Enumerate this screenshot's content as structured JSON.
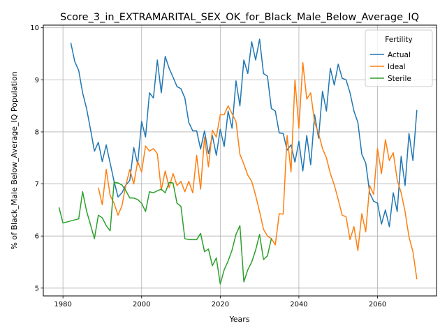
{
  "chart_data": {
    "type": "line",
    "title": "Score_3_in_EXTRAMARITAL_SEX_OK_for_Black_Male_Below_Average_IQ",
    "xlabel": "Years",
    "ylabel": "% of Black_Male Below_Average_IQ Population",
    "xlim": [
      1975,
      2075
    ],
    "ylim": [
      4.85,
      10.05
    ],
    "xticks": [
      1980,
      2000,
      2020,
      2040,
      2060
    ],
    "yticks": [
      5,
      6,
      7,
      8,
      9,
      10
    ],
    "grid": true,
    "legend": {
      "title": "Fertility",
      "placement": "top-right"
    },
    "series": [
      {
        "name": "Actual",
        "color": "#1f77b4",
        "points": [
          [
            1982,
            9.71
          ],
          [
            1983,
            9.35
          ],
          [
            1984,
            9.18
          ],
          [
            1985,
            8.75
          ],
          [
            1986,
            8.45
          ],
          [
            1987,
            8.05
          ],
          [
            1988,
            7.63
          ],
          [
            1989,
            7.8
          ],
          [
            1990,
            7.43
          ],
          [
            1991,
            7.75
          ],
          [
            1992,
            7.4
          ],
          [
            1993,
            7.05
          ],
          [
            1994,
            6.75
          ],
          [
            1995,
            6.83
          ],
          [
            1996,
            6.98
          ],
          [
            1997,
            7.07
          ],
          [
            1998,
            7.7
          ],
          [
            1999,
            7.38
          ],
          [
            2000,
            8.2
          ],
          [
            2001,
            7.9
          ],
          [
            2002,
            8.75
          ],
          [
            2003,
            8.65
          ],
          [
            2004,
            9.38
          ],
          [
            2005,
            8.75
          ],
          [
            2006,
            9.45
          ],
          [
            2007,
            9.22
          ],
          [
            2008,
            9.05
          ],
          [
            2009,
            8.87
          ],
          [
            2010,
            8.83
          ],
          [
            2011,
            8.65
          ],
          [
            2012,
            8.18
          ],
          [
            2013,
            8.02
          ],
          [
            2014,
            8.02
          ],
          [
            2015,
            7.67
          ],
          [
            2016,
            8.02
          ],
          [
            2017,
            7.58
          ],
          [
            2018,
            7.93
          ],
          [
            2019,
            7.55
          ],
          [
            2020,
            8.05
          ],
          [
            2021,
            7.72
          ],
          [
            2022,
            8.4
          ],
          [
            2023,
            8.07
          ],
          [
            2024,
            8.98
          ],
          [
            2025,
            8.5
          ],
          [
            2026,
            9.38
          ],
          [
            2027,
            9.12
          ],
          [
            2028,
            9.73
          ],
          [
            2029,
            9.38
          ],
          [
            2030,
            9.78
          ],
          [
            2031,
            9.12
          ],
          [
            2032,
            9.07
          ],
          [
            2033,
            8.45
          ],
          [
            2034,
            8.4
          ],
          [
            2035,
            7.98
          ],
          [
            2036,
            7.97
          ],
          [
            2037,
            7.65
          ],
          [
            2038,
            7.75
          ],
          [
            2039,
            7.42
          ],
          [
            2040,
            7.82
          ],
          [
            2041,
            7.25
          ],
          [
            2042,
            7.93
          ],
          [
            2043,
            7.37
          ],
          [
            2044,
            8.33
          ],
          [
            2045,
            7.88
          ],
          [
            2046,
            8.78
          ],
          [
            2047,
            8.4
          ],
          [
            2048,
            9.22
          ],
          [
            2049,
            8.9
          ],
          [
            2050,
            9.3
          ],
          [
            2051,
            9.03
          ],
          [
            2052,
            9.0
          ],
          [
            2053,
            8.75
          ],
          [
            2054,
            8.4
          ],
          [
            2055,
            8.18
          ],
          [
            2056,
            7.57
          ],
          [
            2057,
            7.4
          ],
          [
            2058,
            6.83
          ],
          [
            2059,
            6.67
          ],
          [
            2060,
            6.63
          ],
          [
            2061,
            6.23
          ],
          [
            2062,
            6.5
          ],
          [
            2063,
            6.18
          ],
          [
            2064,
            6.83
          ],
          [
            2065,
            6.47
          ],
          [
            2066,
            7.53
          ],
          [
            2067,
            6.97
          ],
          [
            2068,
            7.97
          ],
          [
            2069,
            7.45
          ],
          [
            2070,
            8.42
          ]
        ]
      },
      {
        "name": "Ideal",
        "color": "#ff7f0e",
        "points": [
          [
            1989,
            6.93
          ],
          [
            1990,
            6.6
          ],
          [
            1991,
            7.28
          ],
          [
            1992,
            6.78
          ],
          [
            1993,
            6.63
          ],
          [
            1994,
            6.4
          ],
          [
            1995,
            6.58
          ],
          [
            1996,
            6.98
          ],
          [
            1997,
            7.28
          ],
          [
            1998,
            7.0
          ],
          [
            1999,
            7.43
          ],
          [
            2000,
            7.23
          ],
          [
            2001,
            7.73
          ],
          [
            2002,
            7.63
          ],
          [
            2003,
            7.68
          ],
          [
            2004,
            7.58
          ],
          [
            2005,
            6.88
          ],
          [
            2006,
            7.25
          ],
          [
            2007,
            6.93
          ],
          [
            2008,
            7.2
          ],
          [
            2009,
            6.97
          ],
          [
            2010,
            7.05
          ],
          [
            2011,
            6.85
          ],
          [
            2012,
            7.05
          ],
          [
            2013,
            6.83
          ],
          [
            2014,
            7.55
          ],
          [
            2015,
            6.9
          ],
          [
            2016,
            7.9
          ],
          [
            2017,
            7.33
          ],
          [
            2018,
            8.03
          ],
          [
            2019,
            7.9
          ],
          [
            2020,
            8.33
          ],
          [
            2021,
            8.33
          ],
          [
            2022,
            8.5
          ],
          [
            2023,
            8.35
          ],
          [
            2024,
            8.2
          ],
          [
            2025,
            7.57
          ],
          [
            2026,
            7.38
          ],
          [
            2027,
            7.17
          ],
          [
            2028,
            7.05
          ],
          [
            2029,
            6.78
          ],
          [
            2030,
            6.47
          ],
          [
            2031,
            6.13
          ],
          [
            2032,
            6.0
          ],
          [
            2033,
            5.95
          ],
          [
            2034,
            5.83
          ],
          [
            2035,
            6.43
          ],
          [
            2036,
            6.42
          ],
          [
            2037,
            7.93
          ],
          [
            2038,
            7.23
          ],
          [
            2039,
            9.0
          ],
          [
            2040,
            8.07
          ],
          [
            2041,
            9.33
          ],
          [
            2042,
            8.63
          ],
          [
            2043,
            8.75
          ],
          [
            2044,
            8.18
          ],
          [
            2045,
            7.97
          ],
          [
            2046,
            7.68
          ],
          [
            2047,
            7.5
          ],
          [
            2048,
            7.2
          ],
          [
            2049,
            6.98
          ],
          [
            2050,
            6.7
          ],
          [
            2051,
            6.4
          ],
          [
            2052,
            6.37
          ],
          [
            2053,
            5.93
          ],
          [
            2054,
            6.18
          ],
          [
            2055,
            5.72
          ],
          [
            2056,
            6.43
          ],
          [
            2057,
            6.08
          ],
          [
            2058,
            6.97
          ],
          [
            2059,
            6.8
          ],
          [
            2060,
            7.68
          ],
          [
            2061,
            7.2
          ],
          [
            2062,
            7.85
          ],
          [
            2063,
            7.45
          ],
          [
            2064,
            7.6
          ],
          [
            2065,
            7.08
          ],
          [
            2066,
            6.83
          ],
          [
            2067,
            6.47
          ],
          [
            2068,
            5.98
          ],
          [
            2069,
            5.7
          ],
          [
            2070,
            5.17
          ]
        ]
      },
      {
        "name": "Sterile",
        "color": "#2ca02c",
        "points": [
          [
            1979,
            6.55
          ],
          [
            1980,
            6.25
          ],
          [
            1984,
            6.33
          ],
          [
            1985,
            6.85
          ],
          [
            1986,
            6.48
          ],
          [
            1987,
            6.22
          ],
          [
            1988,
            5.95
          ],
          [
            1989,
            6.4
          ],
          [
            1990,
            6.35
          ],
          [
            1991,
            6.2
          ],
          [
            1992,
            6.1
          ],
          [
            1993,
            7.03
          ],
          [
            1994,
            7.02
          ],
          [
            1995,
            6.98
          ],
          [
            1996,
            6.87
          ],
          [
            1997,
            6.73
          ],
          [
            1998,
            6.73
          ],
          [
            1999,
            6.7
          ],
          [
            2000,
            6.63
          ],
          [
            2001,
            6.47
          ],
          [
            2002,
            6.85
          ],
          [
            2003,
            6.83
          ],
          [
            2004,
            6.87
          ],
          [
            2005,
            6.9
          ],
          [
            2006,
            6.83
          ],
          [
            2007,
            7.03
          ],
          [
            2008,
            7.02
          ],
          [
            2009,
            6.63
          ],
          [
            2010,
            6.57
          ],
          [
            2011,
            5.95
          ],
          [
            2012,
            5.93
          ],
          [
            2013,
            5.93
          ],
          [
            2014,
            5.93
          ],
          [
            2015,
            6.05
          ],
          [
            2016,
            5.7
          ],
          [
            2017,
            5.75
          ],
          [
            2018,
            5.43
          ],
          [
            2019,
            5.58
          ],
          [
            2020,
            5.08
          ],
          [
            2021,
            5.35
          ],
          [
            2022,
            5.52
          ],
          [
            2023,
            5.73
          ],
          [
            2024,
            6.03
          ],
          [
            2025,
            6.2
          ],
          [
            2026,
            5.12
          ],
          [
            2027,
            5.35
          ],
          [
            2028,
            5.5
          ],
          [
            2029,
            5.73
          ],
          [
            2030,
            6.03
          ],
          [
            2031,
            5.55
          ],
          [
            2032,
            5.62
          ],
          [
            2033,
            5.95
          ]
        ]
      }
    ]
  }
}
